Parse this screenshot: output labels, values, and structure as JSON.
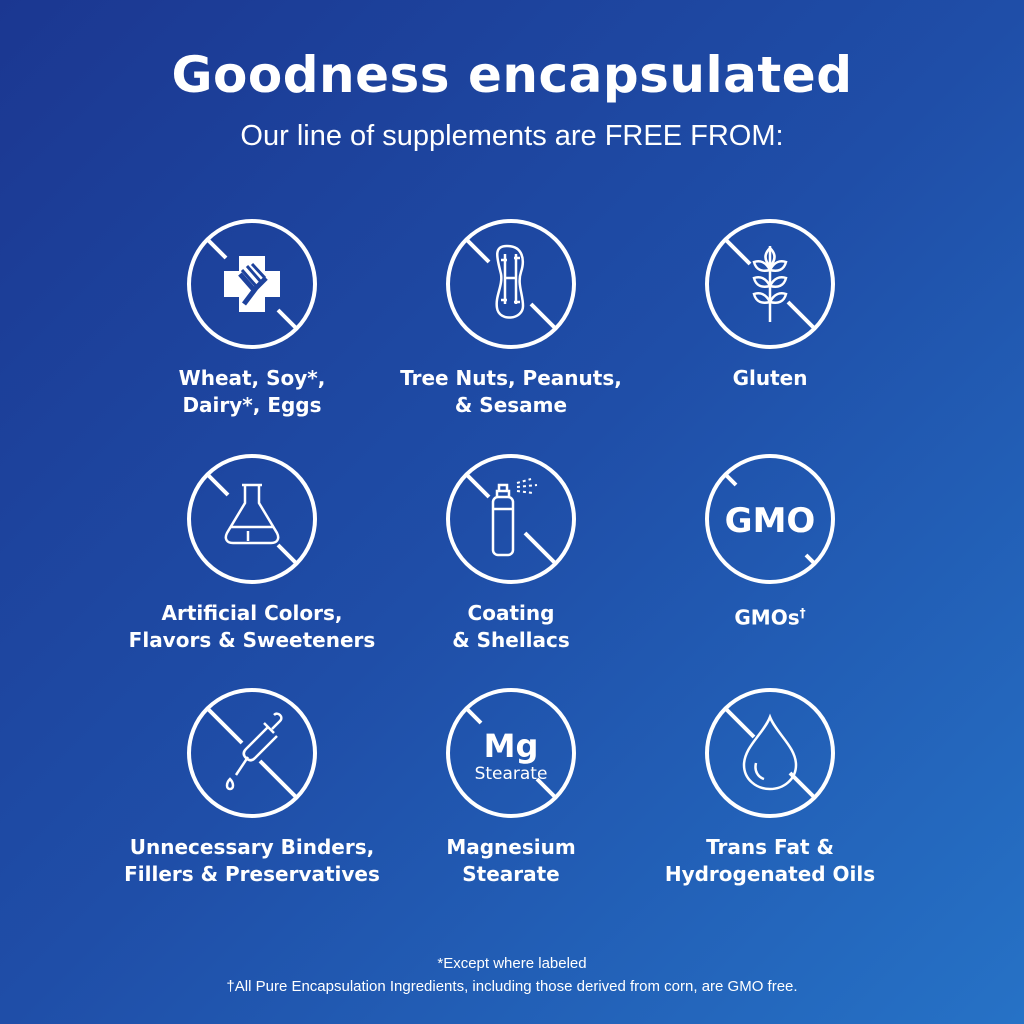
{
  "header": {
    "title": "Goodness encapsulated",
    "subtitle": "Our line of supplements are FREE FROM:"
  },
  "items": [
    {
      "icon": "no-allergen-cross-fork-icon",
      "line1": "Wheat, Soy*,",
      "line2": "Dairy*, Eggs"
    },
    {
      "icon": "no-peanut-icon",
      "line1": "Tree Nuts, Peanuts,",
      "line2": "& Sesame"
    },
    {
      "icon": "no-wheat-icon",
      "line1": "Gluten",
      "line2": ""
    },
    {
      "icon": "no-flask-icon",
      "line1": "Artificial Colors,",
      "line2": "Flavors & Sweeteners"
    },
    {
      "icon": "no-spray-icon",
      "line1": "Coating",
      "line2": "& Shellacs"
    },
    {
      "icon": "no-gmo-icon",
      "icon_text": "GMO",
      "line1": "GMOs",
      "sup": "†",
      "line2": ""
    },
    {
      "icon": "no-dropper-icon",
      "line1": "Unnecessary Binders,",
      "line2": "Fillers & Preservatives"
    },
    {
      "icon": "no-mg-stearate-icon",
      "icon_text": "Mg",
      "icon_subtext": "Stearate",
      "line1": "Magnesium",
      "line2": "Stearate"
    },
    {
      "icon": "no-oil-drop-icon",
      "line1": "Trans Fat &",
      "line2": "Hydrogenated Oils"
    }
  ],
  "footer": {
    "note1": "*Except where labeled",
    "note2": "†All Pure Encapsulation Ingredients, including those derived from corn, are GMO free."
  },
  "colors": {
    "background_start": "#1b3791",
    "background_end": "#2672c6",
    "foreground": "#ffffff"
  }
}
